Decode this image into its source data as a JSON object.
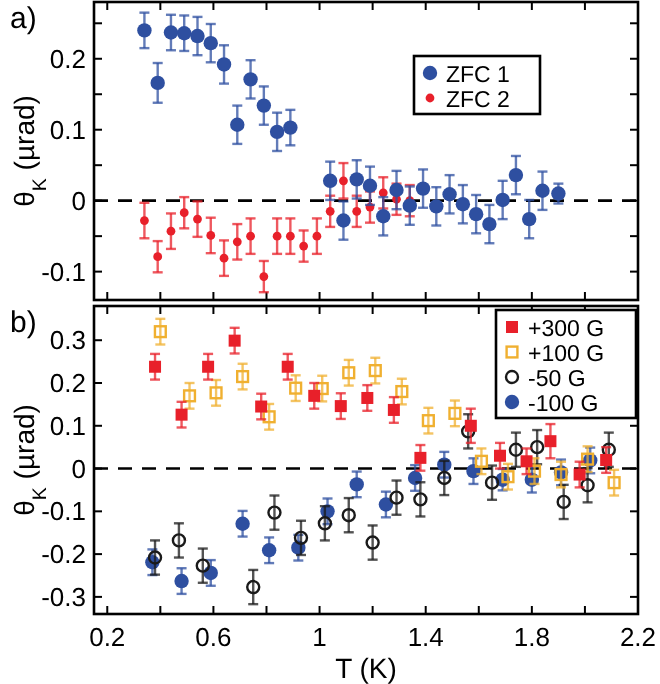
{
  "chart_data": [
    {
      "type": "scatter",
      "title": "a)",
      "ylabel": "θ$_{K}$ (µrad)",
      "xlim": [
        0.15,
        2.2
      ],
      "ylim": [
        -0.14,
        0.28
      ],
      "xticks": [
        0.2,
        {
          "value": 0.4,
          "label": null
        },
        {
          "value": 0.6,
          "label": null
        },
        {
          "value": 0.8,
          "label": null
        },
        {
          "value": 1,
          "label": null
        },
        {
          "value": 1.2,
          "label": null
        },
        {
          "value": 1.4,
          "label": null
        },
        {
          "value": 1.6,
          "label": null
        },
        {
          "value": 1.8,
          "label": null
        },
        {
          "value": 2,
          "label": null
        },
        {
          "value": 2.2,
          "label": null
        }
      ],
      "yticks": [
        -0.1,
        {
          "value": -0.05,
          "label": null
        },
        0,
        {
          "value": 0.05,
          "label": null
        },
        0.1,
        {
          "value": 0.15,
          "label": null
        },
        0.2,
        {
          "value": 0.25,
          "label": null
        }
      ],
      "tick_labels": "y",
      "legend": "top right",
      "ref_lines": [
        {
          "axis": "y",
          "value": 0,
          "line_style": "dashed",
          "color": "#000000"
        }
      ],
      "series": [
        {
          "name": "ZFC 1",
          "color": "#2e4fa0",
          "marker": "circle",
          "x": [
            0.34,
            0.39,
            0.44,
            0.49,
            0.54,
            0.59,
            0.64,
            0.69,
            0.74,
            0.79,
            0.84,
            0.89,
            1.04,
            1.09,
            1.14,
            1.19,
            1.24,
            1.29,
            1.34,
            1.39,
            1.44,
            1.49,
            1.54,
            1.59,
            1.64,
            1.69,
            1.74,
            1.79,
            1.84,
            1.9
          ],
          "values": [
            0.24,
            0.166,
            0.237,
            0.236,
            0.232,
            0.222,
            0.192,
            0.107,
            0.171,
            0.134,
            0.097,
            0.103,
            0.028,
            -0.028,
            0.03,
            0.021,
            -0.022,
            0.015,
            -0.007,
            0.017,
            -0.008,
            0.009,
            -0.005,
            -0.019,
            -0.033,
            0.001,
            0.036,
            -0.026,
            0.014,
            0.01
          ],
          "errors": [
            0.025,
            0.028,
            0.025,
            0.025,
            0.027,
            0.027,
            0.027,
            0.027,
            0.027,
            0.027,
            0.027,
            0.025,
            0.027,
            0.027,
            0.027,
            0.027,
            0.027,
            0.027,
            0.027,
            0.027,
            0.027,
            0.027,
            0.027,
            0.027,
            0.027,
            0.027,
            0.027,
            0.027,
            0.027,
            0.014
          ]
        },
        {
          "name": "ZFC 2",
          "color": "#e8202a",
          "marker": "circle-small",
          "x": [
            0.34,
            0.39,
            0.44,
            0.49,
            0.54,
            0.59,
            0.64,
            0.69,
            0.74,
            0.79,
            0.84,
            0.89,
            0.94,
            0.99,
            1.04,
            1.09,
            1.14,
            1.19,
            1.24,
            1.29,
            1.34
          ],
          "values": [
            -0.028,
            -0.079,
            -0.043,
            -0.017,
            -0.026,
            -0.049,
            -0.081,
            -0.058,
            -0.05,
            -0.107,
            -0.05,
            -0.05,
            -0.064,
            -0.05,
            -0.015,
            0.028,
            -0.015,
            -0.009,
            0.011,
            0.002,
            0.0
          ],
          "errors": [
            0.025,
            0.022,
            0.025,
            0.022,
            0.025,
            0.025,
            0.025,
            0.025,
            0.025,
            0.022,
            0.025,
            0.025,
            0.022,
            0.025,
            0.022,
            0.025,
            0.022,
            0.022,
            0.022,
            0.022,
            0.022
          ]
        }
      ]
    },
    {
      "type": "scatter",
      "title": "b)",
      "xlabel": "T (K)",
      "ylabel": "θ$_{K}$ (µrad)",
      "xlim": [
        0.15,
        2.2
      ],
      "ylim": [
        -0.34,
        0.38
      ],
      "xticks": [
        0.2,
        {
          "value": 0.4,
          "label": null
        },
        0.6,
        {
          "value": 0.8,
          "label": null
        },
        {
          "value": 1,
          "label": "1"
        },
        {
          "value": 1.2,
          "label": null
        },
        1.4,
        {
          "value": 1.6,
          "label": null
        },
        1.8,
        {
          "value": 2,
          "label": null
        },
        2.2
      ],
      "yticks": [
        -0.3,
        -0.2,
        -0.1,
        0,
        0.1,
        0.2,
        0.3
      ],
      "legend": "top right",
      "ref_lines": [
        {
          "axis": "y",
          "value": 0,
          "line_style": "dashed",
          "color": "#000000"
        }
      ],
      "series": [
        {
          "name": "+300 G",
          "color": "#e8202a",
          "marker": "square",
          "x": [
            0.38,
            0.48,
            0.58,
            0.68,
            0.78,
            0.88,
            0.98,
            1.08,
            1.18,
            1.28,
            1.38,
            1.57,
            1.68,
            1.78,
            1.87,
            1.98,
            2.08
          ],
          "values": [
            0.238,
            0.126,
            0.238,
            0.299,
            0.145,
            0.238,
            0.17,
            0.146,
            0.165,
            0.137,
            0.025,
            0.1,
            0.03,
            0.017,
            0.064,
            -0.014,
            0.02
          ],
          "errors": [
            0.03,
            0.03,
            0.03,
            0.03,
            0.03,
            0.03,
            0.03,
            0.03,
            0.03,
            0.03,
            0.03,
            0.04,
            0.03,
            0.03,
            0.04,
            0.03,
            0.03
          ]
        },
        {
          "name": "+100 G",
          "color": "#f0b030",
          "marker": "square-open",
          "x": [
            0.4,
            0.51,
            0.61,
            0.71,
            0.81,
            0.91,
            1.01,
            1.11,
            1.21,
            1.31,
            1.41,
            1.51,
            1.61,
            1.71,
            1.81,
            1.91,
            2.01,
            2.11
          ],
          "values": [
            0.32,
            0.17,
            0.177,
            0.215,
            0.121,
            0.188,
            0.187,
            0.224,
            0.229,
            0.18,
            0.112,
            0.129,
            0.017,
            -0.019,
            -0.006,
            -0.014,
            0.022,
            -0.033
          ],
          "errors": [
            0.03,
            0.03,
            0.03,
            0.03,
            0.03,
            0.03,
            0.03,
            0.03,
            0.03,
            0.03,
            0.03,
            0.03,
            0.03,
            0.03,
            0.03,
            0.03,
            0.03,
            0.03
          ]
        },
        {
          "name": "-50 G",
          "color": "#1a1a1a",
          "marker": "circle-open",
          "x": [
            0.38,
            0.47,
            0.56,
            0.75,
            0.83,
            0.93,
            1.02,
            1.11,
            1.2,
            1.29,
            1.38,
            1.47,
            1.56,
            1.65,
            1.74,
            1.82,
            1.92,
            2.01,
            2.09
          ],
          "values": [
            -0.208,
            -0.168,
            -0.227,
            -0.277,
            -0.103,
            -0.162,
            -0.128,
            -0.109,
            -0.173,
            -0.068,
            -0.072,
            -0.022,
            0.087,
            -0.033,
            0.044,
            0.05,
            -0.078,
            -0.039,
            0.044
          ],
          "errors": [
            0.04,
            0.04,
            0.04,
            0.04,
            0.04,
            0.04,
            0.04,
            0.04,
            0.04,
            0.04,
            0.04,
            0.04,
            0.04,
            0.04,
            0.04,
            0.04,
            0.04,
            0.04,
            0.04
          ]
        },
        {
          "name": "-100 G",
          "color": "#2e4fa0",
          "marker": "circle",
          "x": [
            0.37,
            0.48,
            0.59,
            0.71,
            0.81,
            0.92,
            1.03,
            1.14,
            1.25,
            1.36,
            1.47,
            1.58,
            1.69,
            1.8,
            1.91,
            2.02
          ],
          "values": [
            -0.219,
            -0.263,
            -0.244,
            -0.129,
            -0.191,
            -0.185,
            -0.1,
            -0.037,
            -0.084,
            -0.022,
            0.009,
            -0.006,
            -0.026,
            -0.026,
            -0.009,
            0.019
          ],
          "errors": [
            0.03,
            0.03,
            0.03,
            0.03,
            0.03,
            0.03,
            0.03,
            0.03,
            0.03,
            0.03,
            0.03,
            0.03,
            0.025,
            0.03,
            0.03,
            0.03
          ]
        }
      ]
    }
  ]
}
